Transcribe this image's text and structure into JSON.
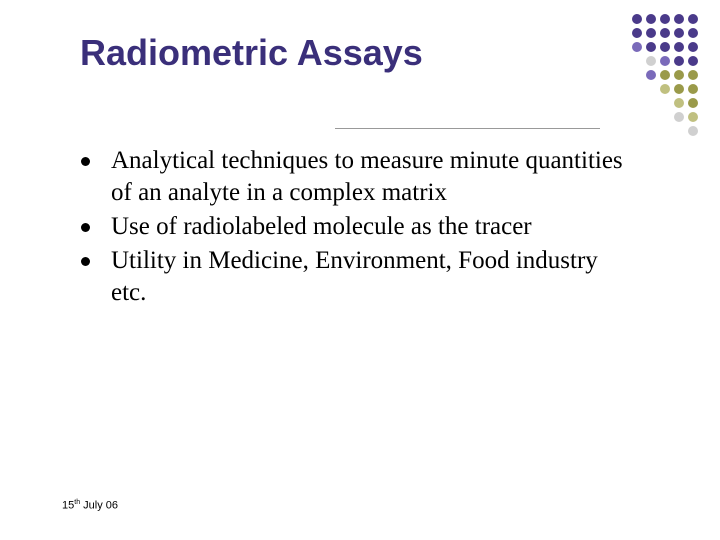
{
  "title": "Radiometric Assays",
  "title_color": "#3a2f7a",
  "title_fontsize": 36,
  "body_fontsize": 25,
  "bullets": [
    "Analytical techniques to measure minute quantities of an analyte in a complex matrix",
    "Use of radiolabeled molecule as the tracer",
    "Utility in Medicine, Environment, Food industry etc."
  ],
  "footer_date_day": "15",
  "footer_date_suffix": "th",
  "footer_date_rest": " July 06",
  "dot_colors": {
    "purple_dark": "#4a3a8a",
    "purple_mid": "#7a6aba",
    "olive": "#9a9a4a",
    "olive_light": "#c0c080",
    "grey": "#d0d0d0",
    "none": "transparent"
  },
  "dot_grid": [
    [
      "none",
      "none",
      "purple_dark",
      "purple_dark",
      "purple_dark",
      "purple_dark",
      "purple_dark"
    ],
    [
      "none",
      "none",
      "purple_dark",
      "purple_dark",
      "purple_dark",
      "purple_dark",
      "purple_dark"
    ],
    [
      "none",
      "none",
      "purple_mid",
      "purple_dark",
      "purple_dark",
      "purple_dark",
      "purple_dark"
    ],
    [
      "none",
      "none",
      "none",
      "grey",
      "purple_mid",
      "purple_dark",
      "purple_dark"
    ],
    [
      "none",
      "none",
      "none",
      "purple_mid",
      "olive",
      "olive",
      "olive"
    ],
    [
      "none",
      "none",
      "none",
      "none",
      "olive_light",
      "olive",
      "olive"
    ],
    [
      "none",
      "none",
      "none",
      "none",
      "none",
      "olive_light",
      "olive"
    ],
    [
      "none",
      "none",
      "none",
      "none",
      "none",
      "grey",
      "olive_light"
    ],
    [
      "none",
      "none",
      "none",
      "none",
      "none",
      "none",
      "grey"
    ]
  ]
}
